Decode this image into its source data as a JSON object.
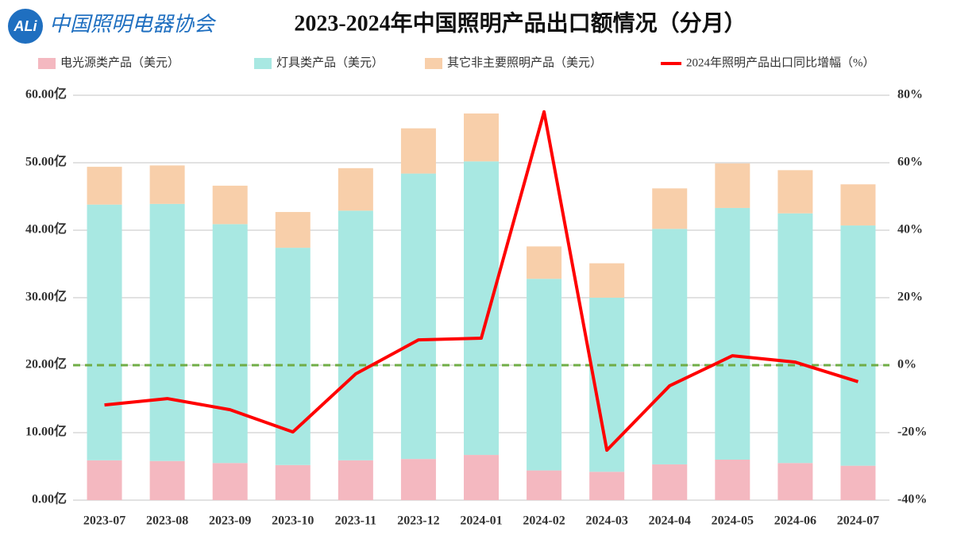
{
  "header": {
    "logo_badge": "ALi",
    "logo_name": "中国照明电器协会"
  },
  "chart_data": {
    "type": "bar",
    "stacked": true,
    "title": "2023-2024年中国照明产品出口额情况（分月）",
    "categories": [
      "2023-07",
      "2023-08",
      "2023-09",
      "2023-10",
      "2023-11",
      "2023-12",
      "2024-01",
      "2024-02",
      "2024-03",
      "2024-04",
      "2024-05",
      "2024-06",
      "2024-07"
    ],
    "series": [
      {
        "name": "电光源类产品（美元）",
        "type": "bar",
        "color": "#f4b8c0",
        "values": [
          5.9,
          5.8,
          5.5,
          5.2,
          5.9,
          6.1,
          6.7,
          4.4,
          4.2,
          5.3,
          6.0,
          5.5,
          5.1
        ]
      },
      {
        "name": "灯具类产品（美元）",
        "type": "bar",
        "color": "#a8e8e2",
        "values": [
          37.9,
          38.1,
          35.4,
          32.2,
          37.0,
          42.3,
          43.5,
          28.4,
          25.8,
          34.9,
          37.3,
          37.0,
          35.6
        ]
      },
      {
        "name": "其它非主要照明产品（美元）",
        "type": "bar",
        "color": "#f8cfaa",
        "values": [
          5.6,
          5.7,
          5.7,
          5.3,
          6.3,
          6.7,
          7.1,
          4.8,
          5.1,
          6.0,
          6.6,
          6.4,
          6.1
        ]
      },
      {
        "name": "2024年照明产品出口同比增幅（%）",
        "type": "line",
        "axis": "y2",
        "color": "#ff0000",
        "values": [
          -11.8,
          -9.9,
          -13.2,
          -19.8,
          -2.6,
          7.5,
          8.0,
          75.1,
          -25.2,
          -6.1,
          2.8,
          0.9,
          -4.9
        ]
      }
    ],
    "ylim": [
      0,
      60
    ],
    "yticks": [
      {
        "value": 0,
        "label": "0.00亿"
      },
      {
        "value": 10,
        "label": "10.00亿"
      },
      {
        "value": 20,
        "label": "20.00亿"
      },
      {
        "value": 30,
        "label": "30.00亿"
      },
      {
        "value": 40,
        "label": "40.00亿"
      },
      {
        "value": 50,
        "label": "50.00亿"
      },
      {
        "value": 60,
        "label": "60.00亿"
      }
    ],
    "y2lim": [
      -40,
      80
    ],
    "y2ticks": [
      {
        "value": -40,
        "label": "-40%"
      },
      {
        "value": -20,
        "label": "-20%"
      },
      {
        "value": 0,
        "label": "0%"
      },
      {
        "value": 20,
        "label": "20%"
      },
      {
        "value": 40,
        "label": "40%"
      },
      {
        "value": 60,
        "label": "60%"
      },
      {
        "value": 80,
        "label": "80%"
      }
    ],
    "grid": true,
    "reference_line": {
      "axis": "y2",
      "value": 0,
      "color": "#70ad47"
    },
    "legend": "top"
  }
}
